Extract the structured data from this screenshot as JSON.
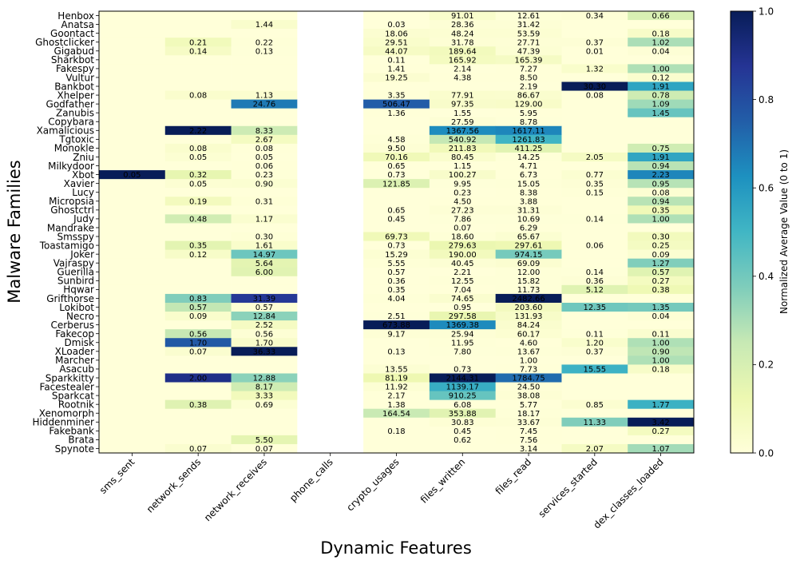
{
  "chart_data": {
    "type": "heatmap",
    "xlabel": "Dynamic Features",
    "ylabel": "Malware Families",
    "colorbar_label": "Normalized Average Value (0 to 1)",
    "colorbar_ticks": [
      "0.0",
      "0.2",
      "0.4",
      "0.6",
      "0.8",
      "1.0"
    ],
    "vmin": 0,
    "vmax": 1,
    "columns": [
      "sms_sent",
      "network_sends",
      "network_receives",
      "phone_calls",
      "crypto_usages",
      "files_written",
      "files_read",
      "services_started",
      "dex_classes_loaded"
    ],
    "rows": [
      "Henbox",
      "Anatsa",
      "Goontact",
      "Ghostclicker",
      "Gigabud",
      "Sharkbot",
      "Fakespy",
      "Vultur",
      "Bankbot",
      "Xhelper",
      "Godfather",
      "Zanubis",
      "Copybara",
      "Xamalicious",
      "Tgtoxic",
      "Monokle",
      "Zniu",
      "Milkydoor",
      "Xbot",
      "Xavier",
      "Lucy",
      "Micropsia",
      "Ghostctrl",
      "Judy",
      "Mandrake",
      "Smsspy",
      "Toastamigo",
      "Joker",
      "Vajraspy",
      "Guerilla",
      "Sunbird",
      "Hqwar",
      "Grifthorse",
      "Lokibot",
      "Necro",
      "Cerberus",
      "Fakecop",
      "Dmisk",
      "XLoader",
      "Marcher",
      "Asacub",
      "Sparkkitty",
      "Facestealer",
      "Sparkcat",
      "Rootnik",
      "Xenomorph",
      "Hiddenminer",
      "Fakebank",
      "Brata",
      "Spynote"
    ],
    "labels": [
      [
        "",
        "",
        "",
        "",
        "",
        "91.01",
        "12.61",
        "0.34",
        "0.66"
      ],
      [
        "",
        "",
        "1.44",
        "",
        "0.03",
        "28.36",
        "31.42",
        "",
        ""
      ],
      [
        "",
        "",
        "",
        "",
        "18.06",
        "48.24",
        "53.59",
        "",
        "0.18"
      ],
      [
        "",
        "0.21",
        "0.22",
        "",
        "29.51",
        "31.78",
        "27.71",
        "0.37",
        "1.02"
      ],
      [
        "",
        "0.14",
        "0.13",
        "",
        "44.07",
        "189.64",
        "47.39",
        "0.01",
        "0.04"
      ],
      [
        "",
        "",
        "",
        "",
        "0.11",
        "165.92",
        "165.39",
        "",
        ""
      ],
      [
        "",
        "",
        "",
        "",
        "1.41",
        "2.14",
        "7.27",
        "1.32",
        "1.00"
      ],
      [
        "",
        "",
        "",
        "",
        "19.25",
        "4.38",
        "8.50",
        "",
        "0.12"
      ],
      [
        "",
        "",
        "",
        "",
        "",
        "",
        "2.19",
        "30.30",
        "1.91"
      ],
      [
        "",
        "0.08",
        "1.13",
        "",
        "3.35",
        "77.91",
        "86.67",
        "0.08",
        "0.78"
      ],
      [
        "",
        "",
        "24.76",
        "",
        "506.47",
        "97.35",
        "129.00",
        "",
        "1.09"
      ],
      [
        "",
        "",
        "",
        "",
        "1.36",
        "1.55",
        "5.95",
        "",
        "1.45"
      ],
      [
        "",
        "",
        "",
        "",
        "",
        "27.59",
        "8.78",
        "",
        ""
      ],
      [
        "",
        "2.22",
        "8.33",
        "",
        "",
        "1367.56",
        "1617.11",
        "",
        ""
      ],
      [
        "",
        "",
        "2.67",
        "",
        "4.58",
        "540.92",
        "1261.83",
        "",
        ""
      ],
      [
        "",
        "0.08",
        "0.08",
        "",
        "9.50",
        "211.83",
        "411.25",
        "",
        "0.75"
      ],
      [
        "",
        "0.05",
        "0.05",
        "",
        "70.16",
        "80.45",
        "14.25",
        "2.05",
        "1.91"
      ],
      [
        "",
        "",
        "0.06",
        "",
        "0.65",
        "1.15",
        "4.71",
        "",
        "0.94"
      ],
      [
        "0.05",
        "0.32",
        "0.23",
        "",
        "0.73",
        "100.27",
        "6.73",
        "0.77",
        "2.23"
      ],
      [
        "",
        "0.05",
        "0.90",
        "",
        "121.85",
        "9.95",
        "15.05",
        "0.35",
        "0.95"
      ],
      [
        "",
        "",
        "",
        "",
        "",
        "0.23",
        "8.38",
        "0.15",
        "0.08"
      ],
      [
        "",
        "0.19",
        "0.31",
        "",
        "",
        "4.50",
        "3.88",
        "",
        "0.94"
      ],
      [
        "",
        "",
        "",
        "",
        "0.65",
        "27.23",
        "31.31",
        "",
        "0.35"
      ],
      [
        "",
        "0.48",
        "1.17",
        "",
        "0.45",
        "7.86",
        "10.69",
        "0.14",
        "1.00"
      ],
      [
        "",
        "",
        "",
        "",
        "",
        "0.07",
        "6.29",
        "",
        ""
      ],
      [
        "",
        "",
        "0.30",
        "",
        "69.73",
        "18.60",
        "65.67",
        "",
        "0.30"
      ],
      [
        "",
        "0.35",
        "1.61",
        "",
        "0.73",
        "279.63",
        "297.61",
        "0.06",
        "0.25"
      ],
      [
        "",
        "0.12",
        "14.97",
        "",
        "15.29",
        "190.00",
        "974.15",
        "",
        "0.09"
      ],
      [
        "",
        "",
        "5.64",
        "",
        "5.55",
        "40.45",
        "69.09",
        "",
        "1.27"
      ],
      [
        "",
        "",
        "6.00",
        "",
        "0.57",
        "2.21",
        "12.00",
        "0.14",
        "0.57"
      ],
      [
        "",
        "",
        "",
        "",
        "0.36",
        "12.55",
        "15.82",
        "0.36",
        "0.27"
      ],
      [
        "",
        "",
        "",
        "",
        "0.35",
        "7.04",
        "11.73",
        "5.12",
        "0.38"
      ],
      [
        "",
        "0.83",
        "31.39",
        "",
        "4.04",
        "74.65",
        "2482.66",
        "",
        ""
      ],
      [
        "",
        "0.57",
        "0.57",
        "",
        "",
        "0.95",
        "203.60",
        "12.35",
        "1.35"
      ],
      [
        "",
        "0.09",
        "12.84",
        "",
        "2.51",
        "297.58",
        "131.93",
        "",
        "0.04"
      ],
      [
        "",
        "",
        "2.52",
        "",
        "673.88",
        "1369.38",
        "84.24",
        "",
        ""
      ],
      [
        "",
        "0.56",
        "0.56",
        "",
        "9.17",
        "25.94",
        "60.17",
        "0.11",
        "0.11"
      ],
      [
        "",
        "1.70",
        "1.70",
        "",
        "",
        "11.95",
        "4.60",
        "1.20",
        "1.00"
      ],
      [
        "",
        "0.07",
        "36.33",
        "",
        "0.13",
        "7.80",
        "13.67",
        "0.37",
        "0.90"
      ],
      [
        "",
        "",
        "",
        "",
        "",
        "",
        "1.00",
        "",
        "1.00"
      ],
      [
        "",
        "",
        "",
        "",
        "13.55",
        "0.73",
        "7.73",
        "15.55",
        "0.18"
      ],
      [
        "",
        "2.00",
        "12.88",
        "",
        "81.19",
        "2144.31",
        "1784.75",
        "",
        ""
      ],
      [
        "",
        "",
        "8.17",
        "",
        "11.92",
        "1139.17",
        "24.50",
        "",
        ""
      ],
      [
        "",
        "",
        "3.33",
        "",
        "2.17",
        "910.25",
        "38.08",
        "",
        ""
      ],
      [
        "",
        "0.38",
        "0.69",
        "",
        "1.38",
        "6.08",
        "5.77",
        "0.85",
        "1.77"
      ],
      [
        "",
        "",
        "",
        "",
        "164.54",
        "353.88",
        "18.17",
        "",
        ""
      ],
      [
        "",
        "",
        "",
        "",
        "",
        "30.83",
        "33.67",
        "11.33",
        "3.42"
      ],
      [
        "",
        "",
        "",
        "",
        "0.18",
        "0.45",
        "7.45",
        "",
        "0.27"
      ],
      [
        "",
        "",
        "5.50",
        "",
        "",
        "0.62",
        "7.56",
        "",
        ""
      ],
      [
        "",
        "0.07",
        "0.07",
        "",
        "",
        "",
        "3.14",
        "2.07",
        "1.07"
      ]
    ]
  }
}
